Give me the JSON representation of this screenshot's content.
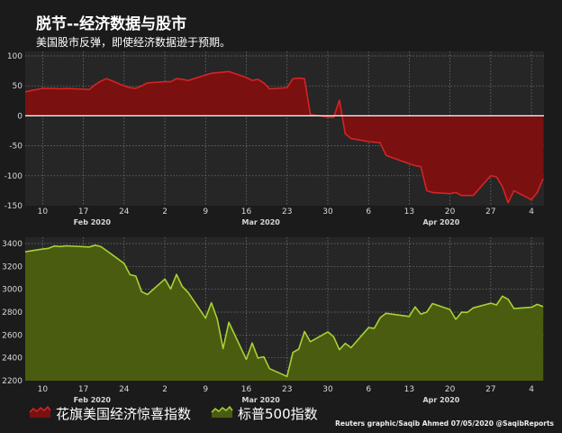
{
  "header": {
    "title": "脱节--经济数据与股市",
    "subtitle": "美国股市反弹，即使经济数据逊于预期。"
  },
  "credit": "Reuters graphic/Saqib Ahmed 07/05/2020 @SaqibReports",
  "chart_data": [
    {
      "type": "area",
      "xlim": [
        "2020-02-07",
        "2020-05-06"
      ],
      "ylim": [
        -150,
        100
      ],
      "y_ticks": [
        100,
        50,
        0,
        -50,
        -100,
        -150
      ],
      "x_ticks": [
        {
          "date": "2020-02-10",
          "label": "10"
        },
        {
          "date": "2020-02-17",
          "label": "17"
        },
        {
          "date": "2020-02-24",
          "label": "24"
        },
        {
          "date": "2020-03-02",
          "label": "2"
        },
        {
          "date": "2020-03-09",
          "label": "9"
        },
        {
          "date": "2020-03-16",
          "label": "16"
        },
        {
          "date": "2020-03-23",
          "label": "23"
        },
        {
          "date": "2020-03-30",
          "label": "30"
        },
        {
          "date": "2020-04-06",
          "label": "6"
        },
        {
          "date": "2020-04-13",
          "label": "13"
        },
        {
          "date": "2020-04-20",
          "label": "20"
        },
        {
          "date": "2020-04-27",
          "label": "27"
        },
        {
          "date": "2020-05-04",
          "label": "4"
        }
      ],
      "month_labels": [
        "Feb 2020",
        "Mar 2020",
        "Apr 2020"
      ],
      "grid": true,
      "series": [
        {
          "name": "花旗美国经济惊喜指数",
          "color": "#d42424",
          "fill": "#7a1010",
          "x": [
            "2020-02-07",
            "2020-02-10",
            "2020-02-11",
            "2020-02-12",
            "2020-02-13",
            "2020-02-14",
            "2020-02-18",
            "2020-02-19",
            "2020-02-20",
            "2020-02-21",
            "2020-02-24",
            "2020-02-25",
            "2020-02-26",
            "2020-02-27",
            "2020-02-28",
            "2020-03-02",
            "2020-03-03",
            "2020-03-04",
            "2020-03-05",
            "2020-03-06",
            "2020-03-09",
            "2020-03-10",
            "2020-03-11",
            "2020-03-12",
            "2020-03-13",
            "2020-03-16",
            "2020-03-17",
            "2020-03-18",
            "2020-03-19",
            "2020-03-20",
            "2020-03-23",
            "2020-03-24",
            "2020-03-25",
            "2020-03-26",
            "2020-03-27",
            "2020-03-30",
            "2020-03-31",
            "2020-04-01",
            "2020-04-02",
            "2020-04-03",
            "2020-04-06",
            "2020-04-07",
            "2020-04-08",
            "2020-04-09",
            "2020-04-13",
            "2020-04-14",
            "2020-04-15",
            "2020-04-16",
            "2020-04-17",
            "2020-04-20",
            "2020-04-21",
            "2020-04-22",
            "2020-04-23",
            "2020-04-24",
            "2020-04-27",
            "2020-04-28",
            "2020-04-29",
            "2020-04-30",
            "2020-05-01",
            "2020-05-04",
            "2020-05-05",
            "2020-05-06"
          ],
          "y": [
            40,
            46,
            46,
            46,
            45,
            46,
            44,
            52,
            58,
            62,
            50,
            47,
            46,
            50,
            55,
            57,
            57,
            62,
            61,
            59,
            68,
            71,
            72,
            73,
            74,
            64,
            59,
            61,
            55,
            45,
            47,
            62,
            63,
            62,
            2,
            -2,
            -3,
            26,
            -30,
            -38,
            -43,
            -44,
            -45,
            -66,
            -80,
            -83,
            -85,
            -125,
            -128,
            -130,
            -128,
            -133,
            -133,
            -133,
            -100,
            -102,
            -118,
            -145,
            -125,
            -140,
            -128,
            -105
          ]
        }
      ]
    },
    {
      "type": "area",
      "xlim": [
        "2020-02-07",
        "2020-05-06"
      ],
      "ylim": [
        2200,
        3400
      ],
      "y_ticks": [
        3400,
        3200,
        3000,
        2800,
        2600,
        2400,
        2200
      ],
      "x_ticks": [
        {
          "date": "2020-02-10",
          "label": "10"
        },
        {
          "date": "2020-02-17",
          "label": "17"
        },
        {
          "date": "2020-02-24",
          "label": "24"
        },
        {
          "date": "2020-03-02",
          "label": "2"
        },
        {
          "date": "2020-03-09",
          "label": "9"
        },
        {
          "date": "2020-03-16",
          "label": "16"
        },
        {
          "date": "2020-03-23",
          "label": "23"
        },
        {
          "date": "2020-03-30",
          "label": "30"
        },
        {
          "date": "2020-04-06",
          "label": "6"
        },
        {
          "date": "2020-04-13",
          "label": "13"
        },
        {
          "date": "2020-04-20",
          "label": "20"
        },
        {
          "date": "2020-04-27",
          "label": "27"
        },
        {
          "date": "2020-05-04",
          "label": "4"
        }
      ],
      "month_labels": [
        "Feb 2020",
        "Mar 2020",
        "Apr 2020"
      ],
      "grid": true,
      "series": [
        {
          "name": "标普500指数",
          "color": "#a8d234",
          "fill": "#4a5c10",
          "x": [
            "2020-02-07",
            "2020-02-10",
            "2020-02-11",
            "2020-02-12",
            "2020-02-13",
            "2020-02-14",
            "2020-02-18",
            "2020-02-19",
            "2020-02-20",
            "2020-02-21",
            "2020-02-24",
            "2020-02-25",
            "2020-02-26",
            "2020-02-27",
            "2020-02-28",
            "2020-03-02",
            "2020-03-03",
            "2020-03-04",
            "2020-03-05",
            "2020-03-06",
            "2020-03-09",
            "2020-03-10",
            "2020-03-11",
            "2020-03-12",
            "2020-03-13",
            "2020-03-16",
            "2020-03-17",
            "2020-03-18",
            "2020-03-19",
            "2020-03-20",
            "2020-03-23",
            "2020-03-24",
            "2020-03-25",
            "2020-03-26",
            "2020-03-27",
            "2020-03-30",
            "2020-03-31",
            "2020-04-01",
            "2020-04-02",
            "2020-04-03",
            "2020-04-06",
            "2020-04-07",
            "2020-04-08",
            "2020-04-09",
            "2020-04-13",
            "2020-04-14",
            "2020-04-15",
            "2020-04-16",
            "2020-04-17",
            "2020-04-20",
            "2020-04-21",
            "2020-04-22",
            "2020-04-23",
            "2020-04-24",
            "2020-04-27",
            "2020-04-28",
            "2020-04-29",
            "2020-04-30",
            "2020-05-01",
            "2020-05-04",
            "2020-05-05",
            "2020-05-06"
          ],
          "y": [
            3328,
            3352,
            3358,
            3379,
            3374,
            3380,
            3370,
            3386,
            3373,
            3338,
            3226,
            3128,
            3116,
            2979,
            2954,
            3090,
            3003,
            3130,
            3024,
            2972,
            2747,
            2882,
            2741,
            2481,
            2711,
            2386,
            2529,
            2398,
            2409,
            2305,
            2237,
            2447,
            2476,
            2630,
            2541,
            2627,
            2585,
            2471,
            2527,
            2489,
            2664,
            2659,
            2750,
            2790,
            2762,
            2846,
            2783,
            2800,
            2875,
            2823,
            2737,
            2799,
            2798,
            2837,
            2878,
            2863,
            2940,
            2912,
            2831,
            2843,
            2868,
            2848
          ]
        }
      ]
    }
  ]
}
